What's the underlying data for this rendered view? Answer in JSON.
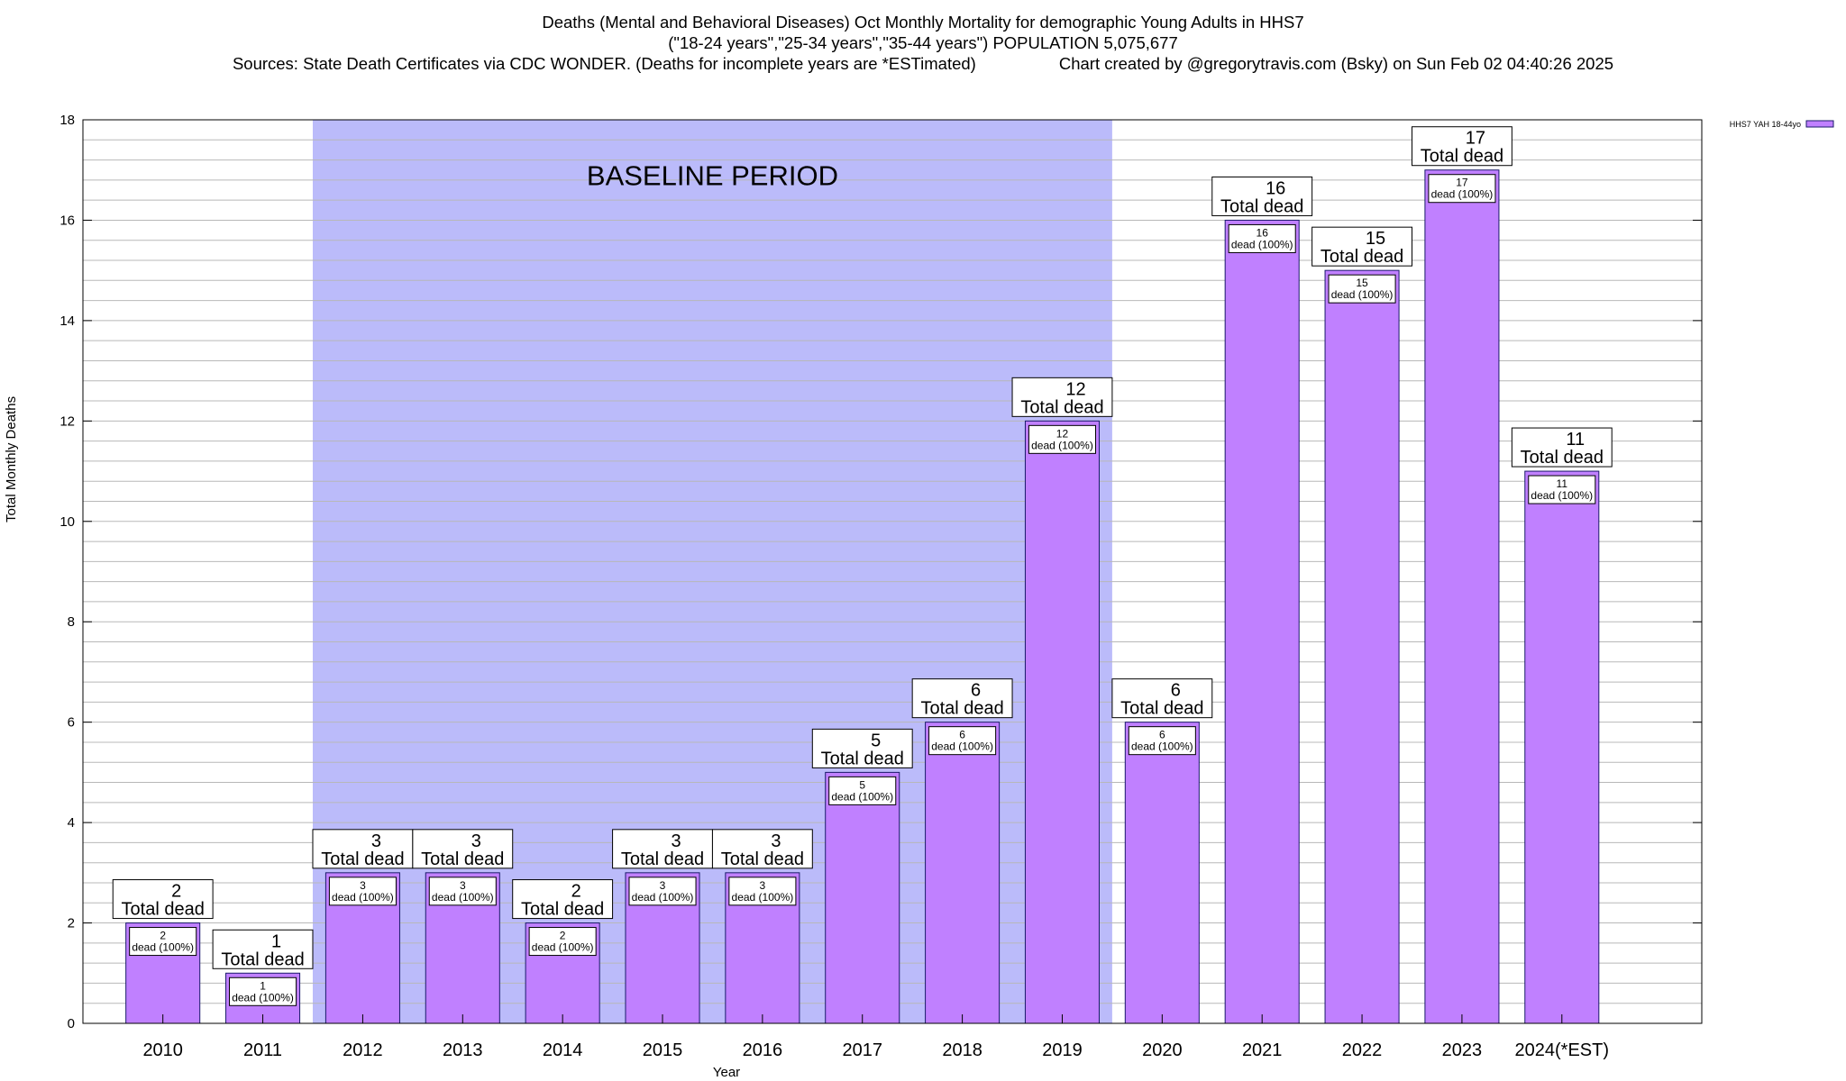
{
  "chart_data": {
    "type": "bar",
    "title_lines": [
      "Deaths (Mental and Behavioral Diseases) Oct Monthly Mortality for demographic Young Adults in HHS7",
      "(\"18-24 years\",\"25-34 years\",\"35-44 years\") POPULATION 5,075,677"
    ],
    "source_text": "Sources: State Death Certificates via CDC WONDER. (Deaths for incomplete years are *ESTimated)",
    "credit_text": "Chart created by @gregorytravis.com (Bsky) on Sun Feb 02 04:40:26 2025",
    "xlabel": "Year",
    "ylabel": "Total Monthly Deaths",
    "ylim": [
      0,
      18
    ],
    "y_ticks": [
      0,
      2,
      4,
      6,
      8,
      10,
      12,
      14,
      16,
      18
    ],
    "y_minor_step": 0.4,
    "categories": [
      "2010",
      "2011",
      "2012",
      "2013",
      "2014",
      "2015",
      "2016",
      "2017",
      "2018",
      "2019",
      "2020",
      "2021",
      "2022",
      "2023",
      "2024(*EST)"
    ],
    "series": [
      {
        "name": "HHS7 YAH 18-44yo",
        "color": "#c080ff",
        "values": [
          2,
          1,
          3,
          3,
          2,
          3,
          3,
          5,
          6,
          12,
          6,
          16,
          15,
          17,
          11
        ]
      }
    ],
    "total_label_suffix": "Total dead",
    "inner_label_suffix": "dead (100%)",
    "baseline": {
      "label": "BASELINE PERIOD",
      "from_category": "2012",
      "to_category": "2019",
      "color": "#bbbbfa"
    },
    "legend_position": "top-right",
    "grid": true
  }
}
